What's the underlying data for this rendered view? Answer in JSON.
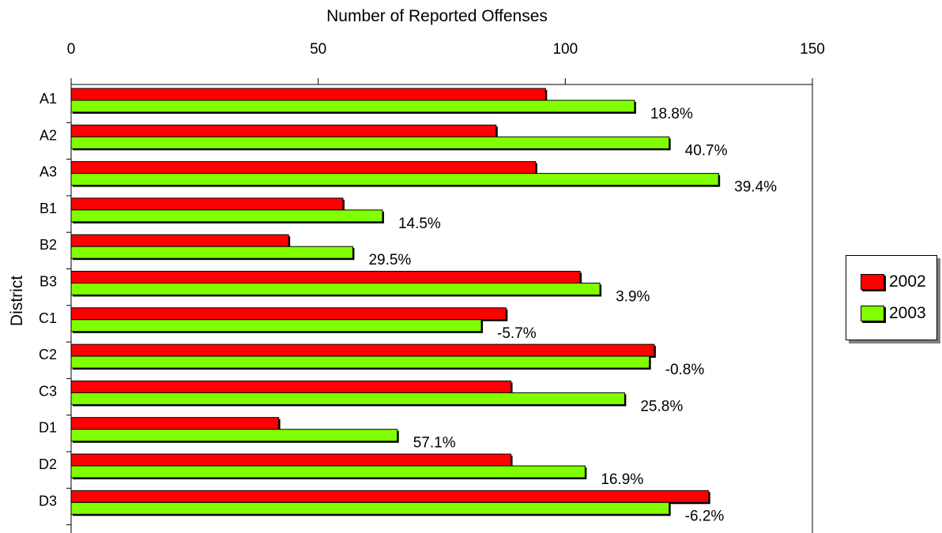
{
  "chart_data": {
    "type": "bar",
    "orientation": "horizontal",
    "title": "Number of Reported Offenses",
    "xlabel": "Number of Reported Offenses",
    "ylabel": "District",
    "xlim": [
      0,
      150
    ],
    "x_ticks": [
      0,
      50,
      100,
      150
    ],
    "x_axis_position": "top",
    "categories": [
      "A1",
      "A2",
      "A3",
      "B1",
      "B2",
      "B3",
      "C1",
      "C2",
      "C3",
      "D1",
      "D2",
      "D3"
    ],
    "series": [
      {
        "name": "2002",
        "color": "#ff0000",
        "values": [
          96,
          86,
          94,
          55,
          44,
          103,
          88,
          118,
          89,
          42,
          89,
          129
        ]
      },
      {
        "name": "2003",
        "color": "#80ff00",
        "values": [
          114,
          121,
          131,
          63,
          57,
          107,
          83,
          117,
          112,
          66,
          104,
          121
        ]
      }
    ],
    "data_labels": [
      "18.8%",
      "40.7%",
      "39.4%",
      "14.5%",
      "29.5%",
      "3.9%",
      "-5.7%",
      "-0.8%",
      "25.8%",
      "57.1%",
      "16.9%",
      "-6.2%"
    ],
    "grid": false,
    "legend_position": "right"
  }
}
